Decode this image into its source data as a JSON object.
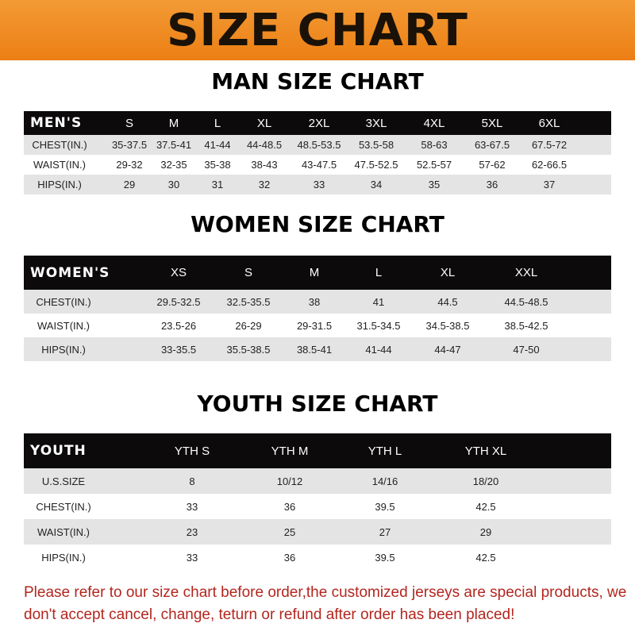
{
  "banner": "SIZE CHART",
  "men": {
    "title": "MAN SIZE CHART",
    "header": [
      "MEN'S",
      "S",
      "M",
      "L",
      "XL",
      "2XL",
      "3XL",
      "4XL",
      "5XL",
      "6XL"
    ],
    "rows": [
      [
        "CHEST(IN.)",
        "35-37.5",
        "37.5-41",
        "41-44",
        "44-48.5",
        "48.5-53.5",
        "53.5-58",
        "58-63",
        "63-67.5",
        "67.5-72"
      ],
      [
        "WAIST(IN.)",
        "29-32",
        "32-35",
        "35-38",
        "38-43",
        "43-47.5",
        "47.5-52.5",
        "52.5-57",
        "57-62",
        "62-66.5"
      ],
      [
        "HIPS(IN.)",
        "29",
        "30",
        "31",
        "32",
        "33",
        "34",
        "35",
        "36",
        "37"
      ]
    ]
  },
  "women": {
    "title": "WOMEN SIZE CHART",
    "header": [
      "WOMEN'S",
      "XS",
      "S",
      "M",
      "L",
      "XL",
      "XXL"
    ],
    "rows": [
      [
        "CHEST(IN.)",
        "29.5-32.5",
        "32.5-35.5",
        "38",
        "41",
        "44.5",
        "44.5-48.5"
      ],
      [
        "WAIST(IN.)",
        "23.5-26",
        "26-29",
        "29-31.5",
        "31.5-34.5",
        "34.5-38.5",
        "38.5-42.5"
      ],
      [
        "HIPS(IN.)",
        "33-35.5",
        "35.5-38.5",
        "38.5-41",
        "41-44",
        "44-47",
        "47-50"
      ]
    ]
  },
  "youth": {
    "title": "YOUTH SIZE CHART",
    "header": [
      "YOUTH",
      "YTH S",
      "YTH M",
      "YTH L",
      "YTH XL"
    ],
    "rows": [
      [
        "U.S.SIZE",
        "8",
        "10/12",
        "14/16",
        "18/20"
      ],
      [
        "CHEST(IN.)",
        "33",
        "36",
        "39.5",
        "42.5"
      ],
      [
        "WAIST(IN.)",
        "23",
        "25",
        "27",
        "29"
      ],
      [
        "HIPS(IN.)",
        "33",
        "36",
        "39.5",
        "42.5"
      ]
    ]
  },
  "note": "Please refer to our size chart before order,the customized jerseys are special products, we don't accept cancel, change, teturn or refund after order has been placed!",
  "colors": {
    "banner": "#ef8a1f",
    "header_row": "#0c0a0a",
    "stripe": "#e4e4e4",
    "note": "#b3261e"
  }
}
